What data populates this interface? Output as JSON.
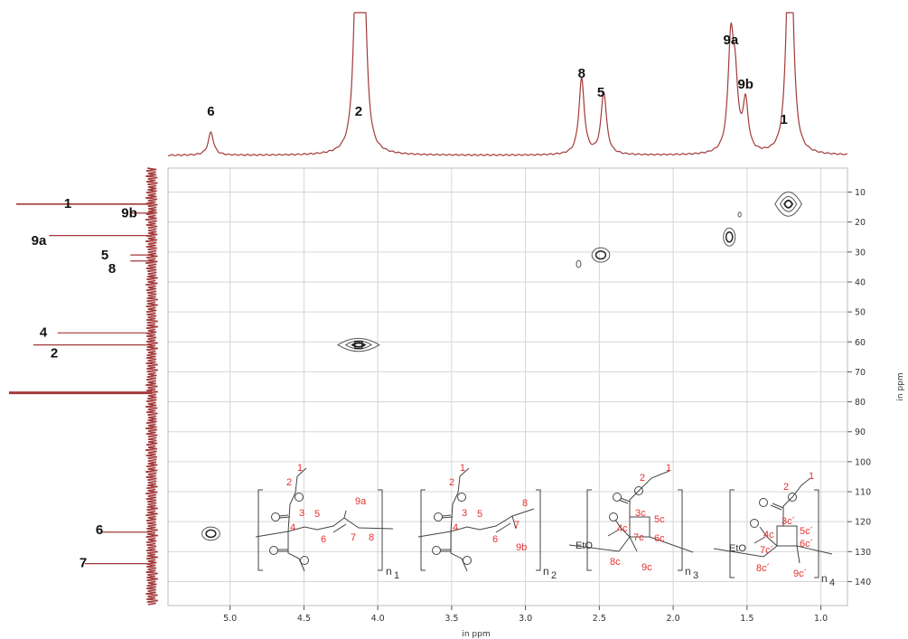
{
  "chart_data": {
    "type": "2D NMR (1H-13C HSQC)",
    "x_axis": {
      "label": "in ppm",
      "range": [
        5.42,
        0.82
      ],
      "ticks": [
        "5.0",
        "4.5",
        "4.0",
        "3.5",
        "3.0",
        "2.5",
        "2.0",
        "1.5",
        "1.0"
      ],
      "tick_values": [
        5.0,
        4.5,
        4.0,
        3.5,
        3.0,
        2.5,
        2.0,
        1.5,
        1.0
      ]
    },
    "y_axis": {
      "label": "in ppm",
      "range": [
        2,
        148
      ],
      "ticks": [
        "10",
        "20",
        "30",
        "40",
        "50",
        "60",
        "70",
        "80",
        "90",
        "100",
        "110",
        "120",
        "130",
        "140"
      ],
      "tick_values": [
        10,
        20,
        30,
        40,
        50,
        60,
        70,
        80,
        90,
        100,
        110,
        120,
        130,
        140
      ]
    },
    "grid": true,
    "proton_projection_labels": [
      {
        "label": "6",
        "ppm": 5.13
      },
      {
        "label": "2",
        "ppm": 4.13
      },
      {
        "label": "8",
        "ppm": 2.62
      },
      {
        "label": "5",
        "ppm": 2.49
      },
      {
        "label": "9a",
        "ppm": 1.61
      },
      {
        "label": "9b",
        "ppm": 1.51
      },
      {
        "label": "1",
        "ppm": 1.25
      }
    ],
    "proton_peaks": [
      {
        "ppm": 5.13,
        "height": 0.17
      },
      {
        "ppm": 4.15,
        "height": 0.88
      },
      {
        "ppm": 4.12,
        "height": 1.0
      },
      {
        "ppm": 4.09,
        "height": 0.88
      },
      {
        "ppm": 2.62,
        "height": 0.56
      },
      {
        "ppm": 2.47,
        "height": 0.46
      },
      {
        "ppm": 1.61,
        "height": 0.79
      },
      {
        "ppm": 1.58,
        "height": 0.45
      },
      {
        "ppm": 1.51,
        "height": 0.36
      },
      {
        "ppm": 1.22,
        "height": 1.0
      },
      {
        "ppm": 1.2,
        "height": 1.0
      }
    ],
    "carbon_projection_labels": [
      {
        "label": "1",
        "ppm": 14
      },
      {
        "label": "9b",
        "ppm": 17
      },
      {
        "label": "9a",
        "ppm": 24
      },
      {
        "label": "5",
        "ppm": 31
      },
      {
        "label": "8",
        "ppm": 33
      },
      {
        "label": "4",
        "ppm": 57
      },
      {
        "label": "2",
        "ppm": 61
      },
      {
        "label": "6",
        "ppm": 123
      },
      {
        "label": "7",
        "ppm": 134
      }
    ],
    "carbon_peaks": [
      {
        "ppm": 14,
        "length": 0.95
      },
      {
        "ppm": 17,
        "length": 0.15
      },
      {
        "ppm": 24.5,
        "length": 0.72
      },
      {
        "ppm": 31,
        "length": 0.15
      },
      {
        "ppm": 33,
        "length": 0.15
      },
      {
        "ppm": 57,
        "length": 0.66
      },
      {
        "ppm": 61,
        "length": 0.83
      },
      {
        "ppm": 76.8,
        "length": 1.0
      },
      {
        "ppm": 77.2,
        "length": 1.0
      },
      {
        "ppm": 123.5,
        "length": 0.35
      },
      {
        "ppm": 134,
        "length": 0.47
      }
    ],
    "cross_peaks": [
      {
        "x": 1.22,
        "y": 14,
        "rx": 0.09,
        "ry": 6
      },
      {
        "x": 1.62,
        "y": 25,
        "rx": 0.04,
        "ry": 3
      },
      {
        "x": 1.55,
        "y": 17.5,
        "rx": 0.01,
        "ry": 0.8
      },
      {
        "x": 2.49,
        "y": 31,
        "rx": 0.06,
        "ry": 2.4
      },
      {
        "x": 2.64,
        "y": 34,
        "rx": 0.015,
        "ry": 1.2
      },
      {
        "x": 4.13,
        "y": 61,
        "rx": 0.14,
        "ry": 3.2
      },
      {
        "x": 5.13,
        "y": 124,
        "rx": 0.06,
        "ry": 2.2
      }
    ]
  },
  "structures": [
    {
      "subscript": "n",
      "index": "1",
      "red_labels": [
        "1",
        "2",
        "3",
        "4",
        "5",
        "6",
        "7",
        "8",
        "9a"
      ]
    },
    {
      "subscript": "n",
      "index": "2",
      "red_labels": [
        "1",
        "2",
        "3",
        "4",
        "5",
        "6",
        "7",
        "8",
        "9b"
      ]
    },
    {
      "subscript": "n",
      "index": "3",
      "red_labels": [
        "1",
        "2",
        "3c",
        "4c",
        "5c",
        "6c",
        "7c",
        "8c",
        "9c"
      ],
      "group": "EtO"
    },
    {
      "subscript": "n",
      "index": "4",
      "red_labels": [
        "1",
        "2",
        "3c´",
        "4c",
        "5c´",
        "6c´",
        "7c´",
        "8c´",
        "9c´"
      ],
      "group": "EtO"
    }
  ],
  "colors": {
    "spectrum": "#a33a3a",
    "contour": "#555555",
    "grid": "#d6d6d6",
    "label_red": "#e53030"
  }
}
